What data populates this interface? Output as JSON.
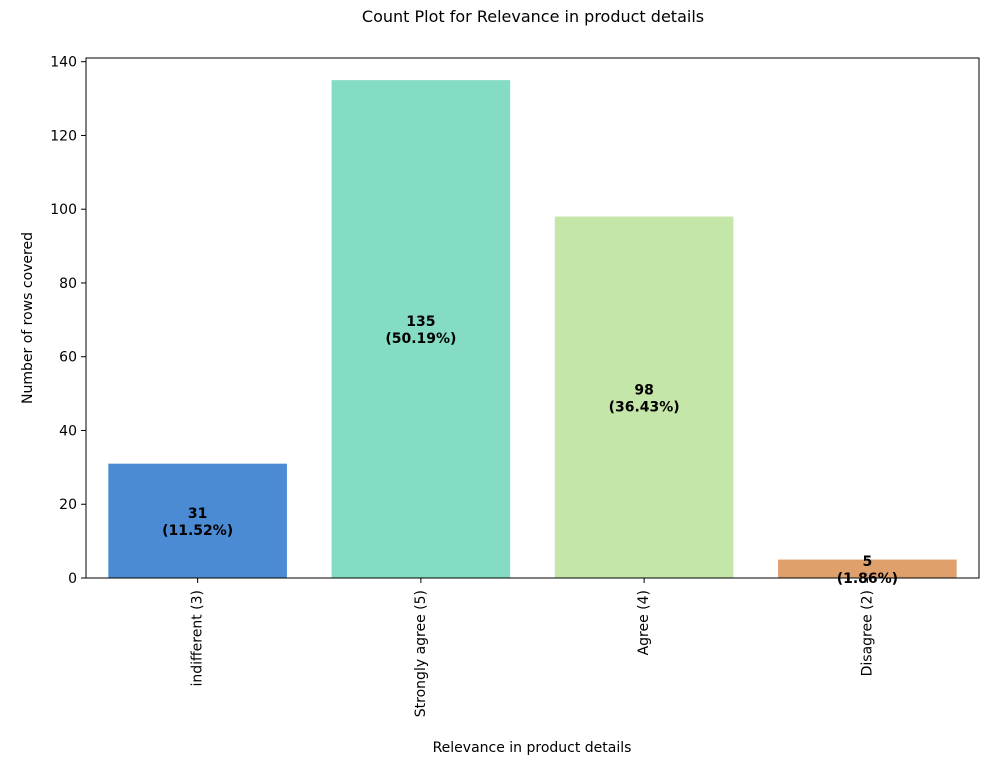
{
  "chart_data": {
    "type": "bar",
    "title": "Count Plot for Relevance in product details",
    "xlabel": "Relevance in product details",
    "ylabel": "Number of rows covered",
    "categories": [
      "indifferent (3)",
      "Strongly agree (5)",
      "Agree (4)",
      "Disagree (2)"
    ],
    "values": [
      31,
      135,
      98,
      5
    ],
    "percent_labels": [
      "(11.52%)",
      "(50.19%)",
      "(36.43%)",
      "(1.86%)"
    ],
    "colors": [
      "#4a8bd4",
      "#84dcc4",
      "#c4e6a8",
      "#e0a06c"
    ],
    "ylim": [
      0,
      141
    ],
    "yticks": [
      0,
      20,
      40,
      60,
      80,
      100,
      120,
      140
    ],
    "grid": false,
    "legend": "none"
  }
}
